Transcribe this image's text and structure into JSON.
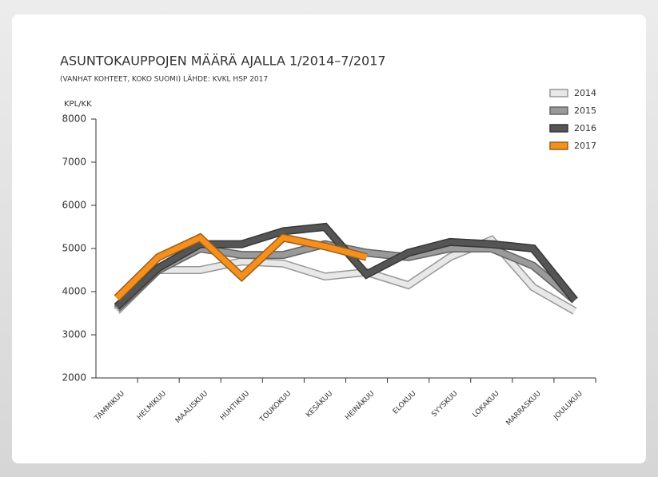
{
  "chart_data": {
    "type": "line",
    "title": "ASUNTOKAUPPOJEN MÄÄRÄ AJALLA 1/2014–7/2017",
    "subtitle": "(VANHAT KOHTEET, KOKO SUOMI) LÄHDE: KVKL HSP 2017",
    "y_label": "KPL/KK",
    "categories": [
      "TAMMIKUU",
      "HELMIKUU",
      "MAALISKUU",
      "HUHTIKUU",
      "TOUKOKUU",
      "KESÄKUU",
      "HEINÄKUU",
      "ELOKUU",
      "SYYSKUU",
      "LOKAKUU",
      "MARRASKUU",
      "JOULUKUU"
    ],
    "series": [
      {
        "name": "2014",
        "color": "#e8e8e8",
        "values": [
          3550,
          4500,
          4500,
          4700,
          4650,
          4350,
          4450,
          4150,
          4800,
          5200,
          4100,
          3550
        ]
      },
      {
        "name": "2015",
        "color": "#9a9a9a",
        "values": [
          3600,
          4500,
          5000,
          4850,
          4850,
          5100,
          4900,
          4800,
          5000,
          5000,
          4600,
          3800
        ]
      },
      {
        "name": "2016",
        "color": "#555555",
        "values": [
          3650,
          4550,
          5100,
          5100,
          5400,
          5500,
          4400,
          4900,
          5150,
          5100,
          5000,
          3800
        ]
      },
      {
        "name": "2017",
        "color": "#f39020",
        "values": [
          3850,
          4800,
          5250,
          4350,
          5250,
          5050,
          4800,
          null,
          null,
          null,
          null,
          null
        ]
      }
    ],
    "ylim": [
      2000,
      8000
    ],
    "yticks": [
      2000,
      3000,
      4000,
      5000,
      6000,
      7000,
      8000
    ],
    "legend": "top-right"
  }
}
